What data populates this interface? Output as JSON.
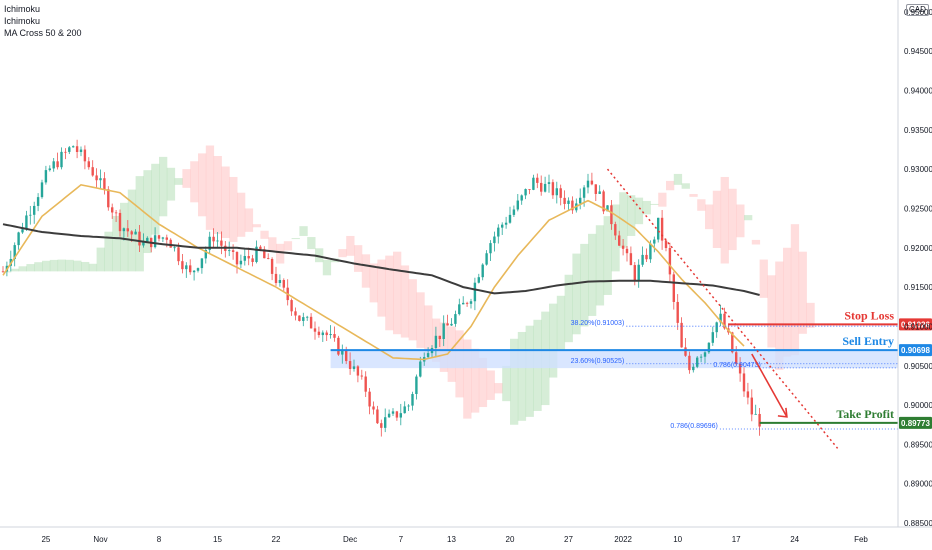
{
  "legend": {
    "line1": "Ichimoku",
    "line2": "Ichimoku",
    "line3": "MA Cross 50 & 200"
  },
  "currency": "CAD",
  "colors": {
    "up": "#26a69a",
    "down": "#ef5350",
    "ma50": "#e8b85a",
    "ma200": "#3c3c3c",
    "stop": "#e53935",
    "entry": "#1e88e5",
    "profit": "#2e7d32",
    "fib": "#2962ff"
  },
  "chart_data": {
    "type": "candlestick",
    "instrument_note": "",
    "y_axis": {
      "ticks": [
        "0.95000",
        "0.94500",
        "0.94000",
        "0.93500",
        "0.93000",
        "0.92500",
        "0.92000",
        "0.91500",
        "0.91000",
        "0.90500",
        "0.90000",
        "0.89500",
        "0.89000",
        "0.88500"
      ],
      "range": [
        0.8845,
        0.9515
      ]
    },
    "x_axis": {
      "ticks": [
        "25",
        "Nov",
        "8",
        "15",
        "22",
        "Dec",
        "7",
        "13",
        "20",
        "27",
        "2022",
        "10",
        "17",
        "24",
        "Feb"
      ]
    },
    "closes_anchor": [
      [
        0,
        0.917
      ],
      [
        6,
        0.924
      ],
      [
        12,
        0.93
      ],
      [
        18,
        0.933
      ],
      [
        24,
        0.929
      ],
      [
        30,
        0.923
      ],
      [
        36,
        0.9205
      ],
      [
        42,
        0.9215
      ],
      [
        48,
        0.9165
      ],
      [
        54,
        0.9215
      ],
      [
        60,
        0.918
      ],
      [
        66,
        0.9195
      ],
      [
        70,
        0.916
      ],
      [
        76,
        0.911
      ],
      [
        82,
        0.9095
      ],
      [
        88,
        0.906
      ],
      [
        93,
        0.902
      ],
      [
        96,
        0.8975
      ],
      [
        100,
        0.8985
      ],
      [
        104,
        0.9
      ],
      [
        108,
        0.907
      ],
      [
        114,
        0.91
      ],
      [
        120,
        0.914
      ],
      [
        124,
        0.92
      ],
      [
        128,
        0.923
      ],
      [
        132,
        0.9255
      ],
      [
        136,
        0.9285
      ],
      [
        140,
        0.9275
      ],
      [
        146,
        0.9255
      ],
      [
        150,
        0.929
      ],
      [
        152,
        0.9275
      ],
      [
        156,
        0.9235
      ],
      [
        160,
        0.9185
      ],
      [
        162,
        0.9165
      ],
      [
        166,
        0.92
      ],
      [
        168,
        0.923
      ],
      [
        170,
        0.9195
      ],
      [
        172,
        0.913
      ],
      [
        174,
        0.907
      ],
      [
        176,
        0.9045
      ],
      [
        178,
        0.9065
      ],
      [
        180,
        0.907
      ],
      [
        182,
        0.91
      ],
      [
        184,
        0.911
      ],
      [
        186,
        0.9085
      ],
      [
        188,
        0.905
      ],
      [
        190,
        0.902
      ],
      [
        192,
        0.899
      ],
      [
        194,
        0.898
      ]
    ],
    "moving_averages": [
      {
        "name": "MA 50",
        "values_anchor": [
          [
            0,
            0.9165
          ],
          [
            10,
            0.924
          ],
          [
            20,
            0.928
          ],
          [
            30,
            0.927
          ],
          [
            40,
            0.923
          ],
          [
            50,
            0.92
          ],
          [
            60,
            0.9175
          ],
          [
            70,
            0.915
          ],
          [
            80,
            0.912
          ],
          [
            90,
            0.909
          ],
          [
            100,
            0.906
          ],
          [
            108,
            0.9058
          ],
          [
            114,
            0.9065
          ],
          [
            120,
            0.91
          ],
          [
            126,
            0.915
          ],
          [
            132,
            0.919
          ],
          [
            140,
            0.9235
          ],
          [
            150,
            0.926
          ],
          [
            156,
            0.9245
          ],
          [
            162,
            0.9225
          ],
          [
            168,
            0.9195
          ],
          [
            174,
            0.916
          ],
          [
            180,
            0.913
          ],
          [
            186,
            0.9095
          ],
          [
            190,
            0.9075
          ]
        ]
      },
      {
        "name": "MA 200",
        "values_anchor": [
          [
            0,
            0.923
          ],
          [
            10,
            0.922
          ],
          [
            20,
            0.9215
          ],
          [
            30,
            0.9212
          ],
          [
            40,
            0.9205
          ],
          [
            50,
            0.92
          ],
          [
            60,
            0.92
          ],
          [
            70,
            0.9195
          ],
          [
            80,
            0.919
          ],
          [
            90,
            0.918
          ],
          [
            100,
            0.9172
          ],
          [
            110,
            0.9165
          ],
          [
            118,
            0.915
          ],
          [
            126,
            0.9142
          ],
          [
            134,
            0.9145
          ],
          [
            142,
            0.9152
          ],
          [
            150,
            0.9157
          ],
          [
            158,
            0.9158
          ],
          [
            166,
            0.9158
          ],
          [
            174,
            0.9155
          ],
          [
            182,
            0.9152
          ],
          [
            190,
            0.9145
          ],
          [
            194,
            0.914
          ]
        ]
      }
    ],
    "levels": [
      {
        "name": "Stop Loss",
        "value": 0.91026,
        "tag": "0.91026"
      },
      {
        "name": "Sell Entry",
        "value": 0.90698,
        "tag": "0.90698"
      },
      {
        "name": "Take Profit",
        "value": 0.89773,
        "tag": "0.89773"
      }
    ],
    "fib_annotations": [
      {
        "text": "38.20%(0.91003)",
        "value": 0.91003
      },
      {
        "text": "23.60%(0.90525)",
        "value": 0.90525
      },
      {
        "text": "0.786(0.90473)",
        "value": 0.90473
      },
      {
        "text": "0.786(0.89696)",
        "value": 0.89696
      }
    ],
    "grid": false
  }
}
